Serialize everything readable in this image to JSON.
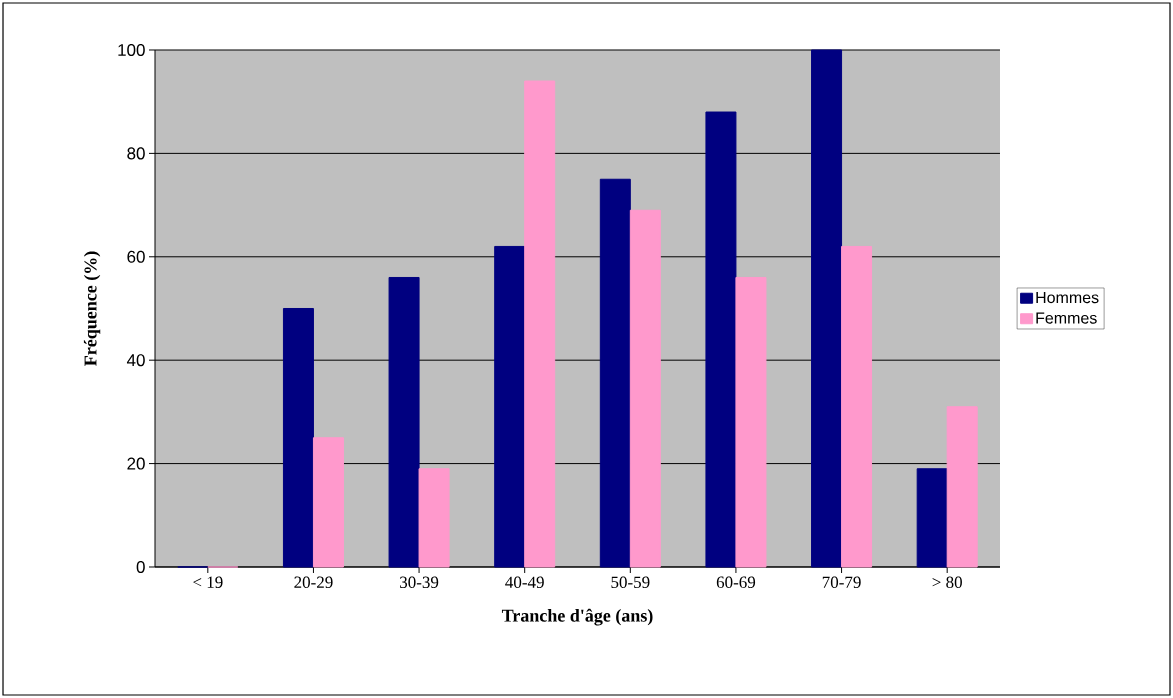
{
  "chart_data": {
    "type": "bar",
    "xlabel": "Tranche d'âge (ans)",
    "ylabel": "Fréquence (%)",
    "categories": [
      "< 19",
      "20-29",
      "30-39",
      "40-49",
      "50-59",
      "60-69",
      "70-79",
      "> 80"
    ],
    "series": [
      {
        "name": "Hommes",
        "color": "#000080",
        "values": [
          0,
          50,
          56,
          62,
          75,
          88,
          100,
          19
        ]
      },
      {
        "name": "Femmes",
        "color": "#ff99cc",
        "values": [
          0,
          25,
          19,
          94,
          69,
          56,
          62,
          31
        ]
      }
    ],
    "ylim": [
      0,
      100
    ],
    "yticks": [
      0,
      20,
      40,
      60,
      80,
      100
    ],
    "grid": "y",
    "legend": "right"
  }
}
